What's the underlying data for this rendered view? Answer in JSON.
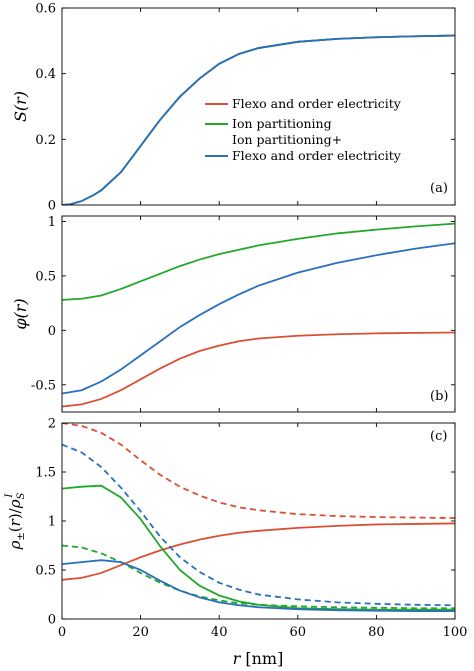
{
  "figure": {
    "xlabel": "r [nm]",
    "colors": {
      "flexo": "#d95035",
      "ion": "#22a82a",
      "both": "#2a6fbe"
    },
    "legend": [
      {
        "key": "flexo",
        "label": "Flexo and order electricity"
      },
      {
        "key": "ion",
        "label": "Ion partitioning"
      },
      {
        "key": "both",
        "label": "Ion partitioning+"
      },
      {
        "key": "both_cont",
        "label": "Flexo and order electricity"
      }
    ]
  },
  "chart_data": [
    {
      "type": "line",
      "panel": "(a)",
      "ylabel": "S(r)",
      "xlim": [
        0,
        100
      ],
      "ylim": [
        0,
        0.6
      ],
      "xticks": [
        "0",
        "20",
        "40",
        "60",
        "80",
        "100"
      ],
      "xtick_labels_shown": false,
      "yticks": [
        0,
        0.2,
        0.4,
        0.6
      ],
      "ytick_labels": [
        "0",
        "0.2",
        "0.4",
        "0.6"
      ],
      "x": [
        0,
        2,
        5,
        8,
        10,
        15,
        20,
        25,
        30,
        35,
        40,
        45,
        50,
        60,
        70,
        80,
        90,
        100
      ],
      "series": [
        {
          "key": "flexo",
          "style": "solid",
          "values": [
            0,
            0.002,
            0.012,
            0.03,
            0.045,
            0.1,
            0.18,
            0.26,
            0.33,
            0.385,
            0.43,
            0.46,
            0.478,
            0.497,
            0.506,
            0.511,
            0.514,
            0.516
          ]
        },
        {
          "key": "ion",
          "style": "solid",
          "values": [
            0,
            0.002,
            0.012,
            0.03,
            0.045,
            0.1,
            0.18,
            0.26,
            0.33,
            0.385,
            0.43,
            0.46,
            0.478,
            0.497,
            0.506,
            0.511,
            0.514,
            0.516
          ]
        },
        {
          "key": "both",
          "style": "solid",
          "values": [
            0,
            0.002,
            0.012,
            0.03,
            0.045,
            0.1,
            0.18,
            0.26,
            0.33,
            0.385,
            0.43,
            0.46,
            0.478,
            0.497,
            0.506,
            0.511,
            0.514,
            0.516
          ]
        }
      ]
    },
    {
      "type": "line",
      "panel": "(b)",
      "ylabel": "φ(r)",
      "xlim": [
        0,
        100
      ],
      "ylim": [
        -0.75,
        1.05
      ],
      "xticks": [
        "0",
        "20",
        "40",
        "60",
        "80",
        "100"
      ],
      "xtick_labels_shown": false,
      "yticks": [
        -0.5,
        0,
        0.5,
        1
      ],
      "ytick_labels": [
        "-0.5",
        "0",
        "0.5",
        "1"
      ],
      "x": [
        0,
        5,
        10,
        15,
        20,
        25,
        30,
        35,
        40,
        45,
        50,
        60,
        70,
        80,
        90,
        100
      ],
      "series": [
        {
          "key": "flexo",
          "style": "solid",
          "values": [
            -0.7,
            -0.68,
            -0.63,
            -0.55,
            -0.45,
            -0.35,
            -0.26,
            -0.19,
            -0.14,
            -0.1,
            -0.075,
            -0.05,
            -0.036,
            -0.028,
            -0.023,
            -0.02
          ]
        },
        {
          "key": "ion",
          "style": "solid",
          "values": [
            0.28,
            0.29,
            0.32,
            0.38,
            0.45,
            0.52,
            0.59,
            0.65,
            0.7,
            0.74,
            0.78,
            0.84,
            0.89,
            0.925,
            0.955,
            0.98
          ]
        },
        {
          "key": "both",
          "style": "solid",
          "values": [
            -0.58,
            -0.55,
            -0.47,
            -0.36,
            -0.23,
            -0.1,
            0.03,
            0.14,
            0.24,
            0.33,
            0.41,
            0.53,
            0.62,
            0.69,
            0.75,
            0.8
          ]
        }
      ]
    },
    {
      "type": "line",
      "panel": "(c)",
      "ylabel": "ρ±(r)/ρSI",
      "xlim": [
        0,
        100
      ],
      "ylim": [
        0,
        2
      ],
      "xticks": [
        "0",
        "20",
        "40",
        "60",
        "80",
        "100"
      ],
      "xtick_labels_shown": true,
      "yticks": [
        0,
        0.5,
        1,
        1.5,
        2
      ],
      "ytick_labels": [
        "0",
        "0.5",
        "1",
        "1.5",
        "2"
      ],
      "x": [
        0,
        5,
        10,
        15,
        20,
        25,
        30,
        35,
        40,
        45,
        50,
        60,
        70,
        80,
        90,
        100
      ],
      "series": [
        {
          "key": "flexo",
          "style": "solid",
          "values": [
            0.4,
            0.42,
            0.47,
            0.55,
            0.63,
            0.7,
            0.76,
            0.81,
            0.85,
            0.88,
            0.9,
            0.93,
            0.95,
            0.965,
            0.97,
            0.975
          ]
        },
        {
          "key": "flexo",
          "style": "dashed",
          "values": [
            2.0,
            1.97,
            1.9,
            1.78,
            1.62,
            1.47,
            1.35,
            1.26,
            1.19,
            1.14,
            1.11,
            1.07,
            1.05,
            1.04,
            1.035,
            1.03
          ]
        },
        {
          "key": "ion",
          "style": "solid",
          "values": [
            1.33,
            1.35,
            1.36,
            1.24,
            1.02,
            0.74,
            0.5,
            0.34,
            0.24,
            0.18,
            0.145,
            0.11,
            0.1,
            0.095,
            0.095,
            0.095
          ]
        },
        {
          "key": "ion",
          "style": "dashed",
          "values": [
            0.75,
            0.73,
            0.67,
            0.58,
            0.47,
            0.37,
            0.29,
            0.23,
            0.19,
            0.16,
            0.145,
            0.13,
            0.12,
            0.115,
            0.11,
            0.11
          ]
        },
        {
          "key": "both",
          "style": "solid",
          "values": [
            0.56,
            0.58,
            0.6,
            0.58,
            0.5,
            0.39,
            0.29,
            0.22,
            0.17,
            0.14,
            0.12,
            0.1,
            0.09,
            0.085,
            0.08,
            0.08
          ]
        },
        {
          "key": "both",
          "style": "dashed",
          "values": [
            1.78,
            1.7,
            1.55,
            1.34,
            1.1,
            0.84,
            0.63,
            0.48,
            0.37,
            0.3,
            0.25,
            0.2,
            0.17,
            0.155,
            0.145,
            0.14
          ]
        }
      ]
    }
  ]
}
